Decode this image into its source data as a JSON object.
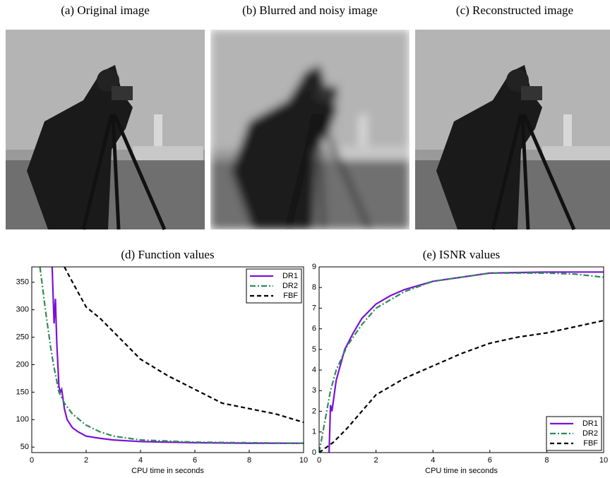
{
  "images": [
    {
      "caption": "(a) Original image"
    },
    {
      "caption": "(b) Blurred and noisy image"
    },
    {
      "caption": "(c) Reconstructed image"
    }
  ],
  "chart_data": [
    {
      "type": "line",
      "title": "(d) Function values",
      "x_label": "CPU time in seconds",
      "xlim": [
        0,
        10
      ],
      "xticks": [
        0,
        2,
        4,
        6,
        8,
        10
      ],
      "ylim": [
        40,
        378
      ],
      "yticks": [
        50,
        100,
        150,
        200,
        250,
        300,
        350
      ],
      "legend": "upper right",
      "series": [
        {
          "name": "DR1",
          "color": "#7b12d6",
          "dash": "solid",
          "x": [
            0.75,
            0.82,
            0.87,
            0.92,
            1.0,
            1.05,
            1.1,
            1.2,
            1.3,
            1.5,
            1.7,
            2,
            2.5,
            3,
            4,
            5,
            6,
            8,
            10
          ],
          "values": [
            378,
            275,
            320,
            240,
            160,
            150,
            155,
            120,
            100,
            85,
            78,
            70,
            66,
            63,
            60,
            59,
            58,
            57,
            57
          ]
        },
        {
          "name": "DR2",
          "color": "#2e8b57",
          "dash": "dashdot",
          "x": [
            0.3,
            0.4,
            0.5,
            0.6,
            0.7,
            0.8,
            1.0,
            1.2,
            1.5,
            2,
            2.5,
            3,
            4,
            6,
            8,
            10
          ],
          "values": [
            378,
            340,
            300,
            265,
            230,
            200,
            150,
            130,
            110,
            90,
            78,
            70,
            63,
            59,
            58,
            57
          ]
        },
        {
          "name": "FBF",
          "color": "#000000",
          "dash": "dashed",
          "x": [
            1.2,
            1.5,
            2,
            2.5,
            3,
            3.5,
            4,
            5,
            6,
            7,
            8,
            9,
            10
          ],
          "values": [
            378,
            350,
            305,
            285,
            260,
            235,
            210,
            180,
            155,
            130,
            120,
            110,
            95
          ]
        }
      ]
    },
    {
      "type": "line",
      "title": "(e) ISNR values",
      "x_label": "CPU time in seconds",
      "xlim": [
        0,
        10
      ],
      "xticks": [
        0,
        2,
        4,
        6,
        8,
        10
      ],
      "ylim": [
        0,
        9
      ],
      "yticks": [
        0,
        1,
        2,
        3,
        4,
        5,
        6,
        7,
        8,
        9
      ],
      "legend": "lower right",
      "series": [
        {
          "name": "DR1",
          "color": "#7b12d6",
          "dash": "solid",
          "x": [
            0.35,
            0.4,
            0.45,
            0.5,
            0.6,
            0.7,
            0.9,
            1.2,
            1.5,
            2,
            2.5,
            3,
            4,
            5,
            6,
            8,
            10
          ],
          "values": [
            0,
            2.3,
            2,
            2.5,
            3.5,
            4,
            5,
            5.8,
            6.5,
            7.2,
            7.6,
            7.9,
            8.3,
            8.5,
            8.7,
            8.75,
            8.75
          ]
        },
        {
          "name": "DR2",
          "color": "#2e8b57",
          "dash": "dashdot",
          "x": [
            0,
            0.2,
            0.4,
            0.6,
            1,
            1.5,
            2,
            3,
            4,
            6,
            8,
            9,
            10
          ],
          "values": [
            0,
            1.5,
            3,
            4,
            5.2,
            6.2,
            7,
            7.8,
            8.3,
            8.7,
            8.7,
            8.65,
            8.5
          ]
        },
        {
          "name": "FBF",
          "color": "#000000",
          "dash": "dashed",
          "x": [
            0,
            0.5,
            1,
            2,
            3,
            4,
            5,
            6,
            7,
            8,
            9,
            10
          ],
          "values": [
            0,
            0.5,
            1.2,
            2.8,
            3.6,
            4.2,
            4.8,
            5.3,
            5.6,
            5.8,
            6.1,
            6.4
          ]
        }
      ]
    }
  ]
}
